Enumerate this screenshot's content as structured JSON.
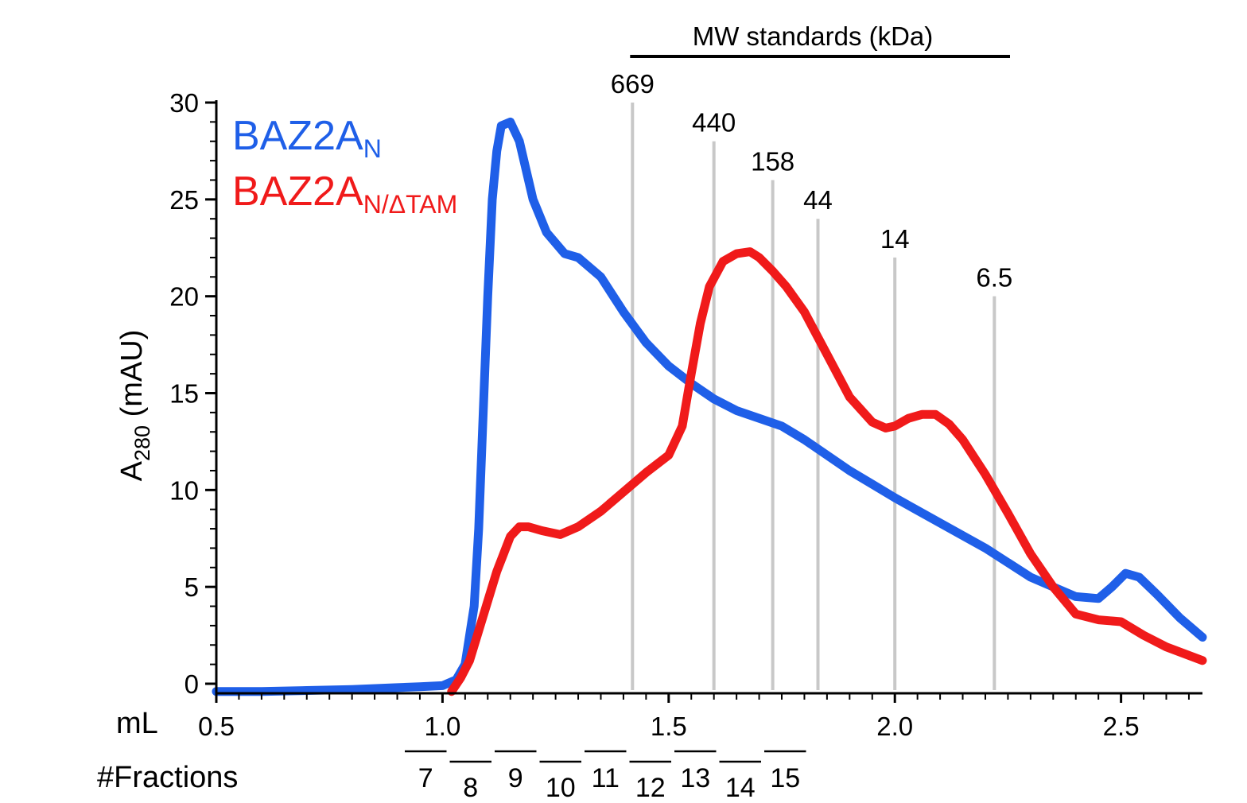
{
  "chart_data": {
    "type": "line",
    "title": "",
    "xlabel": "mL",
    "ylabel_main": "A",
    "ylabel_sub": "280",
    "ylabel_unit": " (mAU)",
    "xlim": [
      0.5,
      2.68
    ],
    "ylim": [
      0,
      30
    ],
    "x_ticks": [
      "0.5",
      "1.0",
      "1.5",
      "2.0",
      "2.5"
    ],
    "y_ticks": [
      "0",
      "5",
      "10",
      "15",
      "20",
      "25",
      "30"
    ],
    "x_tick_values": [
      0.5,
      1.0,
      1.5,
      2.0,
      2.5
    ],
    "y_tick_values": [
      0,
      5,
      10,
      15,
      20,
      25,
      30
    ],
    "grid": false,
    "legend_position": "top-left",
    "series": [
      {
        "name": "BAZ2A",
        "name_sub": "N",
        "color": "#1f5fe8",
        "x": [
          0.5,
          0.6,
          0.7,
          0.8,
          0.9,
          0.95,
          1.0,
          1.03,
          1.05,
          1.07,
          1.08,
          1.09,
          1.1,
          1.11,
          1.12,
          1.13,
          1.15,
          1.17,
          1.2,
          1.23,
          1.27,
          1.3,
          1.35,
          1.4,
          1.45,
          1.5,
          1.55,
          1.6,
          1.65,
          1.7,
          1.75,
          1.8,
          1.85,
          1.9,
          1.95,
          2.0,
          2.1,
          2.2,
          2.3,
          2.4,
          2.45,
          2.48,
          2.51,
          2.54,
          2.58,
          2.63,
          2.68
        ],
        "values": [
          -0.4,
          -0.4,
          -0.35,
          -0.3,
          -0.2,
          -0.15,
          -0.1,
          0.2,
          1.0,
          4.0,
          8.0,
          14.0,
          20.0,
          25.0,
          27.5,
          28.8,
          29.0,
          28.0,
          25.0,
          23.3,
          22.2,
          22.0,
          21.0,
          19.2,
          17.6,
          16.4,
          15.5,
          14.7,
          14.1,
          13.7,
          13.3,
          12.6,
          11.8,
          11.0,
          10.3,
          9.6,
          8.3,
          7.0,
          5.5,
          4.5,
          4.4,
          5.0,
          5.7,
          5.5,
          4.6,
          3.4,
          2.4
        ]
      },
      {
        "name": "BAZ2A",
        "name_sub": "N/ΔTAM",
        "color": "#f01a1a",
        "x": [
          1.02,
          1.04,
          1.06,
          1.09,
          1.12,
          1.15,
          1.17,
          1.19,
          1.22,
          1.26,
          1.3,
          1.35,
          1.4,
          1.45,
          1.5,
          1.53,
          1.55,
          1.57,
          1.59,
          1.62,
          1.65,
          1.68,
          1.7,
          1.73,
          1.76,
          1.8,
          1.85,
          1.9,
          1.95,
          1.98,
          2.0,
          2.03,
          2.06,
          2.09,
          2.12,
          2.15,
          2.2,
          2.25,
          2.3,
          2.35,
          2.4,
          2.45,
          2.5,
          2.55,
          2.6,
          2.68
        ],
        "values": [
          -0.4,
          0.3,
          1.2,
          3.5,
          5.8,
          7.6,
          8.1,
          8.1,
          7.9,
          7.7,
          8.1,
          8.9,
          9.9,
          10.9,
          11.8,
          13.3,
          16.0,
          18.6,
          20.5,
          21.8,
          22.2,
          22.3,
          22.0,
          21.3,
          20.5,
          19.2,
          17.0,
          14.8,
          13.5,
          13.2,
          13.3,
          13.7,
          13.9,
          13.9,
          13.4,
          12.6,
          10.8,
          8.8,
          6.7,
          5.0,
          3.6,
          3.3,
          3.2,
          2.5,
          1.9,
          1.2
        ]
      }
    ],
    "mw_standards": {
      "title": "MW standards (kDa)",
      "markers": [
        {
          "label": "669",
          "x": 1.42,
          "y_top": 30
        },
        {
          "label": "440",
          "x": 1.6,
          "y_top": 28
        },
        {
          "label": "158",
          "x": 1.73,
          "y_top": 26
        },
        {
          "label": "44",
          "x": 1.83,
          "y_top": 24
        },
        {
          "label": "14",
          "x": 2.0,
          "y_top": 22
        },
        {
          "label": "6.5",
          "x": 2.22,
          "y_top": 20
        }
      ]
    },
    "fractions": {
      "title": "#Fractions",
      "labels": [
        "7",
        "8",
        "9",
        "10",
        "11",
        "12",
        "13",
        "14",
        "15"
      ]
    }
  },
  "colors": {
    "blue": "#1f5fe8",
    "red": "#f01a1a",
    "marker_line": "#c8c8c8"
  }
}
